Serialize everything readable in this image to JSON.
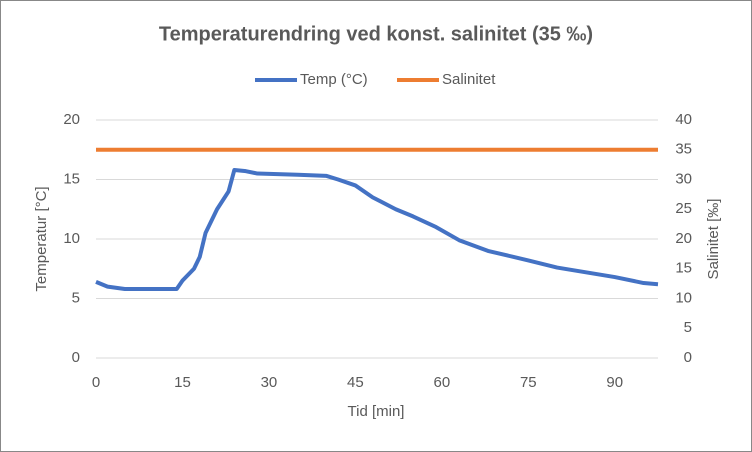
{
  "chart_data": {
    "type": "line",
    "title": "Temperaturendring ved konst. salinitet (35 ‰)",
    "x_label": "Tid [min]",
    "y_label": "Temperatur [°C]",
    "y2_label": "Salinitet [‰]",
    "xlim": [
      0,
      97.5
    ],
    "xticks": [
      0,
      15,
      30,
      45,
      60,
      75,
      90
    ],
    "ylim": [
      0,
      20
    ],
    "yticks": [
      0,
      5,
      10,
      15,
      20
    ],
    "y2lim": [
      0,
      40
    ],
    "y2ticks": [
      0,
      5,
      10,
      15,
      20,
      25,
      30,
      35,
      40
    ],
    "grid": true,
    "legend": "top",
    "series": [
      {
        "name": "Temp (°C)",
        "color": "#4472c4",
        "x": [
          0,
          2,
          5,
          14,
          15,
          17,
          18,
          19,
          21,
          23,
          24,
          26,
          28,
          35,
          40,
          42,
          45,
          48,
          52,
          55,
          59,
          63,
          68,
          75,
          80,
          85,
          90,
          95,
          97.5
        ],
        "values": [
          6.4,
          6.0,
          5.8,
          5.8,
          6.5,
          7.5,
          8.5,
          10.5,
          12.5,
          14.0,
          15.8,
          15.7,
          15.5,
          15.4,
          15.3,
          15.0,
          14.5,
          13.5,
          12.5,
          11.9,
          11.0,
          9.9,
          9.0,
          8.2,
          7.6,
          7.2,
          6.8,
          6.3,
          6.2
        ]
      },
      {
        "name": "Salinitet",
        "color": "#ed7d31",
        "axis": "y2",
        "x": [
          0,
          97.5
        ],
        "values": [
          35,
          35
        ]
      }
    ]
  }
}
